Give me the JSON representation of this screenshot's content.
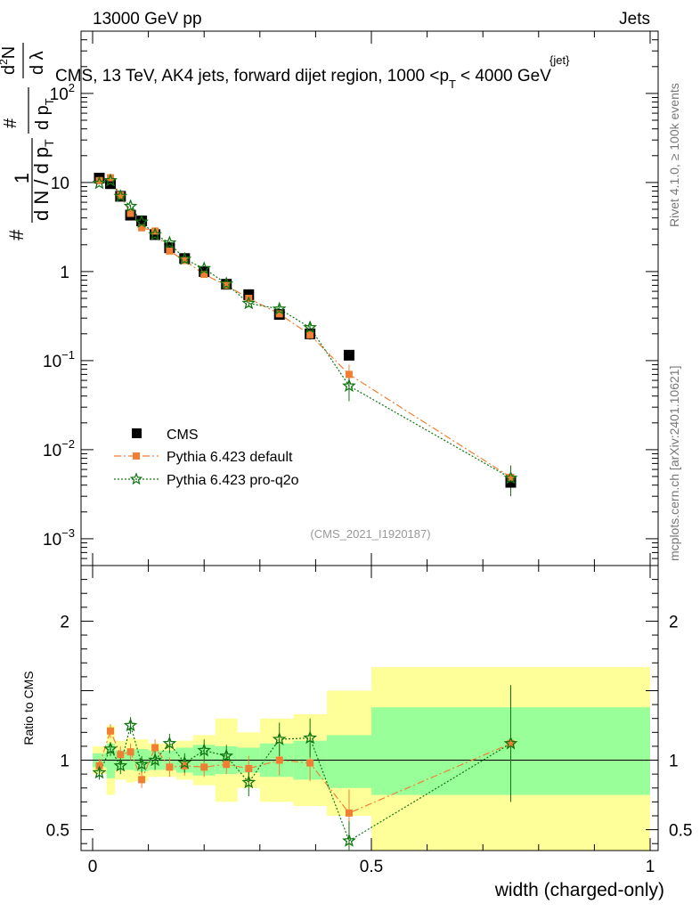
{
  "header": {
    "left": "13000 GeV pp",
    "right": "Jets"
  },
  "title": {
    "main": "CMS, 13 TeV, AK4 jets, forward dijet region, 1000 <p",
    "sup": "{jet}",
    "sub": "T",
    "after": "< 4000 GeV"
  },
  "ylabel": {
    "hash": "#",
    "numerator": "1",
    "den_left": "d N / d p",
    "den_sub": "T",
    "mid_hash": "#",
    "mid_num": "d p",
    "mid_sub": "T",
    "rhs_top": "d",
    "rhs_sup": "2",
    "rhs_n": "N",
    "rhs_bottom": "d λ"
  },
  "side_labels": {
    "rivet": "Rivet 4.1.0, ≥ 100k events",
    "mcplots": "mcplots.cern.ch [arXiv:2401.10621]"
  },
  "analysis_tag": "(CMS_2021_I1920187)",
  "ratio_ylabel": "Ratio to CMS",
  "xlabel": "width (charged-only)",
  "colors": {
    "data": "#000000",
    "default": "#f07f33",
    "proq2o": "#117511",
    "band_inner": "#99ff99",
    "band_outer": "#ffff99"
  },
  "legend": [
    {
      "label": "CMS",
      "key": "data"
    },
    {
      "label": "Pythia 6.423 default",
      "key": "default"
    },
    {
      "label": "Pythia 6.423 pro-q2o",
      "key": "proq2o"
    }
  ],
  "chart_data": {
    "type": "scatter",
    "x_range": [
      -0.02,
      1.0
    ],
    "ylim_main": [
      0.0005,
      500
    ],
    "ylog": true,
    "ylim_ratio": [
      0.35,
      2.4
    ],
    "x_ticks": [
      0,
      0.5,
      1
    ],
    "x_tick_labels": [
      "0",
      "0.5",
      "1"
    ],
    "y_ticks_main": [
      {
        "v": 0.001,
        "base": "10",
        "exp": "−3"
      },
      {
        "v": 0.01,
        "base": "10",
        "exp": "−2"
      },
      {
        "v": 0.1,
        "base": "10",
        "exp": "−1"
      },
      {
        "v": 1,
        "base": "1",
        "exp": ""
      },
      {
        "v": 10,
        "base": "10",
        "exp": ""
      },
      {
        "v": 100,
        "base": "10",
        "exp": "2"
      }
    ],
    "y_ticks_ratio": [
      {
        "v": 0.5,
        "label": "0.5"
      },
      {
        "v": 1,
        "label": "1"
      },
      {
        "v": 2,
        "label": "2"
      }
    ],
    "bins": [
      [
        0.0,
        0.025
      ],
      [
        0.025,
        0.04
      ],
      [
        0.04,
        0.06
      ],
      [
        0.06,
        0.075
      ],
      [
        0.075,
        0.1
      ],
      [
        0.1,
        0.125
      ],
      [
        0.125,
        0.15
      ],
      [
        0.15,
        0.18
      ],
      [
        0.18,
        0.22
      ],
      [
        0.22,
        0.26
      ],
      [
        0.26,
        0.3
      ],
      [
        0.3,
        0.36
      ],
      [
        0.36,
        0.42
      ],
      [
        0.42,
        0.5
      ],
      [
        0.5,
        1.0
      ]
    ],
    "x": [
      0.012,
      0.032,
      0.05,
      0.068,
      0.088,
      0.112,
      0.138,
      0.165,
      0.2,
      0.24,
      0.28,
      0.335,
      0.39,
      0.46,
      0.75
    ],
    "series": [
      {
        "name": "CMS",
        "key": "data",
        "values": [
          11.2,
          9.7,
          7.0,
          4.3,
          3.7,
          2.6,
          1.85,
          1.4,
          1.0,
          0.72,
          0.55,
          0.33,
          0.2,
          0.115,
          0.0043
        ]
      },
      {
        "name": "Pythia 6.423 default",
        "key": "default",
        "values": [
          10.5,
          11.3,
          7.2,
          4.5,
          3.1,
          2.85,
          1.7,
          1.33,
          0.93,
          0.7,
          0.5,
          0.335,
          0.195,
          0.07,
          0.0049
        ],
        "errors": [
          0.3,
          0.4,
          0.3,
          0.2,
          0.15,
          0.12,
          0.08,
          0.06,
          0.05,
          0.04,
          0.04,
          0.03,
          0.025,
          0.02,
          0.0018
        ],
        "ratio": [
          0.96,
          1.21,
          1.04,
          1.06,
          0.86,
          1.09,
          0.95,
          0.96,
          0.95,
          0.97,
          0.94,
          1.0,
          0.98,
          0.62,
          1.12
        ],
        "ratio_err": [
          0.05,
          0.05,
          0.06,
          0.06,
          0.06,
          0.06,
          0.07,
          0.07,
          0.07,
          0.07,
          0.09,
          0.11,
          0.13,
          0.17,
          0.42
        ]
      },
      {
        "name": "Pythia 6.423 pro-q2o",
        "key": "proq2o",
        "values": [
          9.8,
          10.5,
          7.0,
          5.4,
          3.6,
          2.6,
          2.1,
          1.38,
          1.08,
          0.73,
          0.44,
          0.38,
          0.235,
          0.052,
          0.0048
        ],
        "errors": [
          0.3,
          0.4,
          0.3,
          0.25,
          0.2,
          0.12,
          0.1,
          0.07,
          0.06,
          0.05,
          0.04,
          0.035,
          0.03,
          0.017,
          0.0018
        ],
        "ratio": [
          0.91,
          1.08,
          0.96,
          1.25,
          0.97,
          1.0,
          1.12,
          0.98,
          1.07,
          1.03,
          0.84,
          1.15,
          1.16,
          0.42,
          1.12
        ],
        "ratio_err": [
          0.05,
          0.05,
          0.06,
          0.06,
          0.06,
          0.07,
          0.07,
          0.07,
          0.08,
          0.08,
          0.1,
          0.12,
          0.14,
          0.14,
          0.42
        ]
      }
    ],
    "band_inner": [
      [
        0.95,
        1.05
      ],
      [
        0.87,
        1.12
      ],
      [
        0.93,
        1.07
      ],
      [
        0.93,
        1.07
      ],
      [
        0.92,
        1.08
      ],
      [
        0.93,
        1.07
      ],
      [
        0.93,
        1.07
      ],
      [
        0.91,
        1.09
      ],
      [
        0.89,
        1.11
      ],
      [
        0.9,
        1.1
      ],
      [
        0.91,
        1.09
      ],
      [
        0.88,
        1.12
      ],
      [
        0.86,
        1.14
      ],
      [
        0.8,
        1.18
      ],
      [
        0.75,
        1.38
      ]
    ],
    "band_outer": [
      [
        0.9,
        1.1
      ],
      [
        0.75,
        1.25
      ],
      [
        0.86,
        1.14
      ],
      [
        0.84,
        1.16
      ],
      [
        0.85,
        1.15
      ],
      [
        0.88,
        1.12
      ],
      [
        0.88,
        1.12
      ],
      [
        0.86,
        1.14
      ],
      [
        0.82,
        1.18
      ],
      [
        0.7,
        1.3
      ],
      [
        0.8,
        1.2
      ],
      [
        0.7,
        1.3
      ],
      [
        0.67,
        1.33
      ],
      [
        0.6,
        1.5
      ],
      [
        0.35,
        1.67
      ]
    ]
  }
}
